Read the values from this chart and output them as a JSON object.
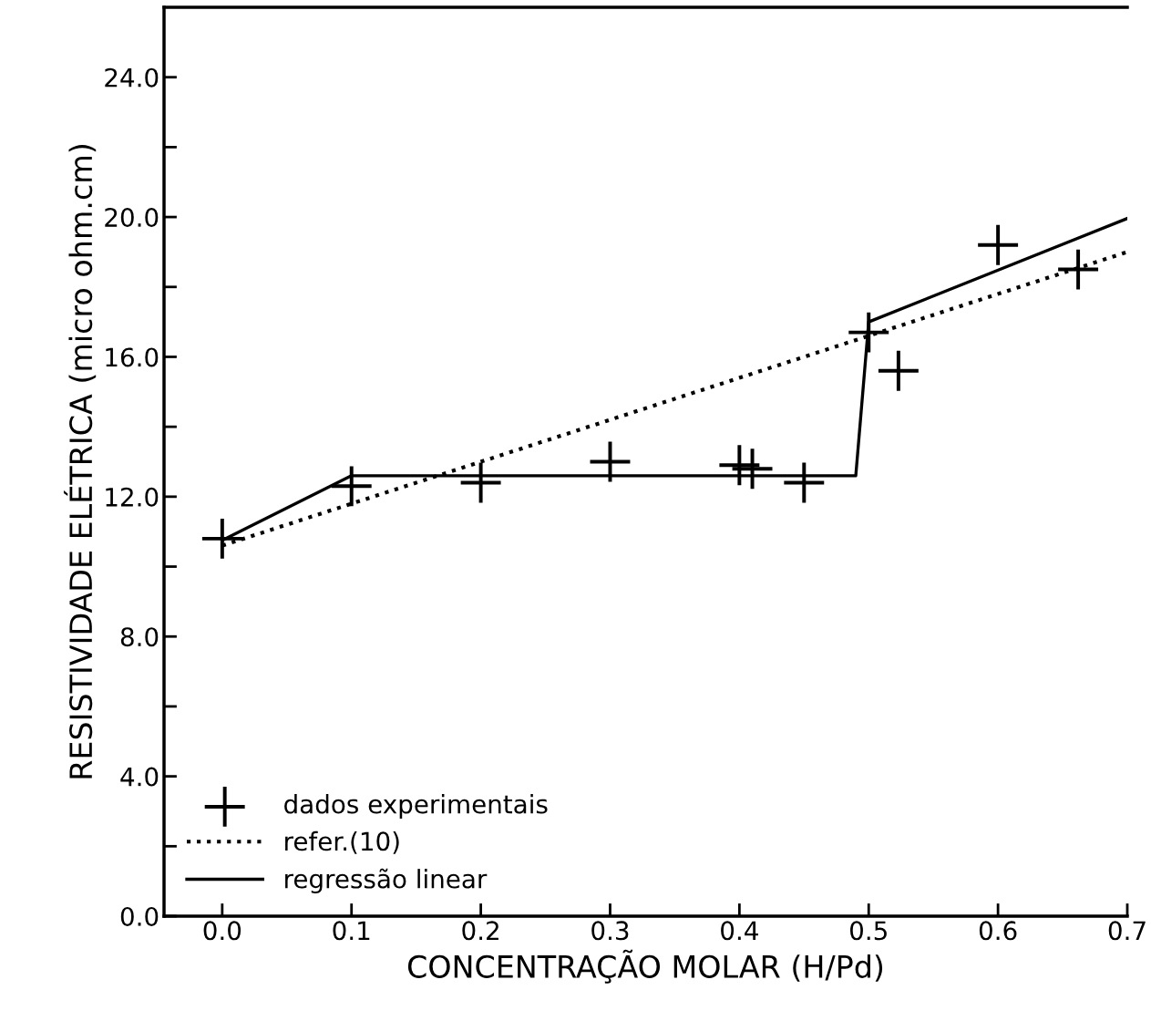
{
  "chart_data": {
    "type": "scatter",
    "xlabel": "CONCENTRAÇÃO MOLAR (H/Pd)",
    "ylabel": "RESISTIVIDADE ELÉTRICA (micro ohm.cm)",
    "xlim": [
      -0.045,
      0.7
    ],
    "ylim": [
      0,
      26
    ],
    "xticks": [
      {
        "value": 0.0,
        "label": "0.0"
      },
      0.1,
      0.2,
      0.3,
      0.4,
      0.5,
      0.6,
      0.7
    ],
    "yticks": [
      {
        "value": 0,
        "label": "0.0"
      },
      {
        "value": 2,
        "label": null
      },
      {
        "value": 4,
        "label": "4.0"
      },
      {
        "value": 6,
        "label": null
      },
      {
        "value": 8,
        "label": "8.0"
      },
      {
        "value": 10,
        "label": null
      },
      {
        "value": 12,
        "label": "12.0"
      },
      {
        "value": 14,
        "label": null
      },
      {
        "value": 16,
        "label": "16.0"
      },
      {
        "value": 18,
        "label": null
      },
      {
        "value": 20,
        "label": "20.0"
      },
      {
        "value": 22,
        "label": null
      },
      {
        "value": 24,
        "label": "24.0"
      }
    ],
    "grid": false,
    "legend": "bottom left",
    "series": [
      {
        "name": "dados experimentais",
        "marker": "cross",
        "color": "#000000",
        "x": [
          0.0,
          0.1,
          0.2,
          0.3,
          0.4,
          0.41,
          0.45,
          0.5,
          0.523,
          0.6,
          0.662
        ],
        "values": [
          10.8,
          12.3,
          12.4,
          13.0,
          12.9,
          12.8,
          12.4,
          16.7,
          15.6,
          19.2,
          18.5
        ]
      },
      {
        "name": "refer.(10)",
        "type": "line",
        "line_style": "dotted",
        "color": "#000000",
        "x": [
          0.0,
          0.7
        ],
        "values": [
          10.6,
          19.0
        ]
      },
      {
        "name": "regressão linear",
        "type": "line",
        "line_style": "solid",
        "color": "#000000",
        "x": [
          0.0,
          0.1,
          0.49,
          0.5,
          0.7
        ],
        "values": [
          10.75,
          12.6,
          12.6,
          17.0,
          19.96
        ]
      }
    ]
  }
}
